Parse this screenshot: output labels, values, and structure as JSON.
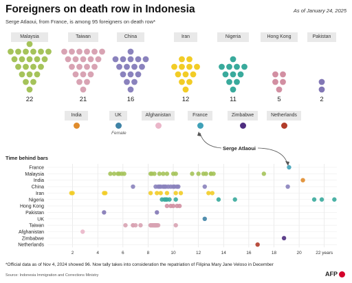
{
  "title": "Foreigners on death row in Indonesia",
  "as_of": "As of January 24, 2025",
  "subtitle": "Serge Atlaoui, from France, is among 95 foreigners on death row*",
  "countries_top": [
    {
      "name": "Malaysia",
      "count": "22",
      "color": "#a5c35a"
    },
    {
      "name": "Taiwan",
      "count": "21",
      "color": "#d8a3b3"
    },
    {
      "name": "China",
      "count": "16",
      "color": "#8a82bd"
    },
    {
      "name": "Iran",
      "count": "12",
      "color": "#f2cc26"
    },
    {
      "name": "Nigeria",
      "count": "11",
      "color": "#39aa9c"
    },
    {
      "name": "Hong Kong",
      "count": "5",
      "color": "#d28fa2"
    },
    {
      "name": "Pakistan",
      "count": "2",
      "color": "#8277b5"
    }
  ],
  "countries_single": [
    {
      "name": "India",
      "color": "#e08c2c"
    },
    {
      "name": "UK",
      "color": "#3f83a6"
    },
    {
      "name": "Afghanistan",
      "color": "#eab6c9"
    },
    {
      "name": "France",
      "color": "#3fa1b8"
    },
    {
      "name": "Zimbabwe",
      "color": "#4e2d80"
    },
    {
      "name": "Netherlands",
      "color": "#b13c2a"
    }
  ],
  "uk_note": "Female",
  "callout": "Serge Atlaoui",
  "section_title": "Time behind bars",
  "footnote": "*Official data as of Nov 4, 2024 showed 96. Now tally takes into consideration the repatriation of Filipina Mary Jane Veloso in December",
  "source": "Source: Indonesia Immigration and Corrections Ministry",
  "logo": "AFP",
  "chart_data": {
    "type": "scatter",
    "title": "Time behind bars",
    "xlabel": "",
    "x_unit": "years",
    "x_ticks": [
      "2",
      "4",
      "6",
      "8",
      "10",
      "12",
      "14",
      "16",
      "18",
      "20",
      "22 years"
    ],
    "xlim": [
      0,
      23
    ],
    "grid": true,
    "rows": [
      {
        "name": "France",
        "color": "#3fa1b8",
        "x": [
          19.2
        ]
      },
      {
        "name": "Malaysia",
        "color": "#a5c35a",
        "x": [
          5.0,
          5.3,
          5.6,
          5.9,
          6.1,
          8.2,
          8.3,
          8.5,
          8.9,
          9.2,
          9.5,
          10.0,
          10.2,
          11.5,
          12.0,
          12.6,
          13.0,
          13.2,
          12.4,
          13.0,
          17.2,
          5.7
        ]
      },
      {
        "name": "India",
        "color": "#e08c2c",
        "x": [
          20.3
        ]
      },
      {
        "name": "China",
        "color": "#8a82bd",
        "x": [
          6.8,
          8.6,
          8.9,
          9.2,
          9.4,
          9.0,
          10.0,
          10.3,
          9.6,
          12.5,
          19.1,
          10.1,
          9.8,
          8.8,
          10.4,
          9.3
        ]
      },
      {
        "name": "Iran",
        "color": "#f2cc26",
        "x": [
          1.9,
          2.0,
          4.5,
          8.2,
          8.7,
          9.0,
          9.5,
          10.2,
          10.6,
          12.8,
          13.1,
          4.6
        ]
      },
      {
        "name": "Nigeria",
        "color": "#39aa9c",
        "x": [
          9.1,
          9.3,
          9.5,
          9.7,
          10.2,
          13.6,
          14.9,
          21.2,
          21.8,
          22.8,
          9.4
        ]
      },
      {
        "name": "Hong Kong",
        "color": "#d28fa2",
        "x": [
          9.8,
          10.0,
          10.5,
          9.5,
          10.3
        ]
      },
      {
        "name": "Pakistan",
        "color": "#8277b5",
        "x": [
          4.5,
          8.7
        ]
      },
      {
        "name": "UK",
        "color": "#3f83a6",
        "x": [
          12.5
        ]
      },
      {
        "name": "Taiwan",
        "color": "#d8a3b3",
        "x": [
          6.2,
          6.8,
          7.4,
          8.2,
          8.3,
          8.5,
          8.6,
          8.7,
          8.8,
          8.3,
          8.5,
          10.2,
          8.4,
          8.6,
          7.0,
          8.4,
          8.6,
          8.2,
          8.7,
          6.8,
          8.5
        ]
      },
      {
        "name": "Afghanistan",
        "color": "#eab6c9",
        "x": [
          2.8
        ]
      },
      {
        "name": "Zimbabwe",
        "color": "#4e2d80",
        "x": [
          18.8
        ]
      },
      {
        "name": "Netherlands",
        "color": "#b13c2a",
        "x": [
          16.7
        ]
      }
    ]
  }
}
